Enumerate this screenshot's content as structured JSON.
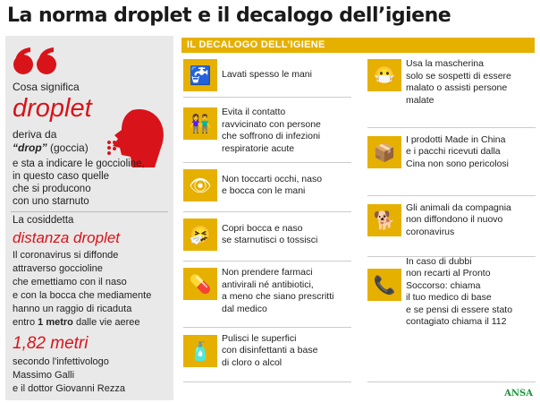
{
  "title": "La norma droplet e il decalogo dell’igiene",
  "left": {
    "intro": "Cosa significa",
    "term": "droplet",
    "deriva": "deriva da",
    "drop": "“drop”",
    "goccia": " (goccia)",
    "desc": [
      "e sta a indicare le goccioline,",
      "in questo caso quelle",
      "che si producono",
      "con uno starnuto"
    ],
    "cosiddetta": "La cosiddetta",
    "distanza": "distanza droplet",
    "body": [
      "Il coronavirus si diffonde",
      "attraverso goccioline",
      "che emettiamo con il naso",
      "e con la bocca che mediamente",
      "hanno un raggio di ricaduta"
    ],
    "entro": "entro ",
    "metro": "1 metro",
    "vie": " dalle vie aeree",
    "metri": "1,82 metri",
    "source": [
      "secondo l'infettivologo",
      "Massimo Galli",
      "e il dottor Giovanni Rezza"
    ]
  },
  "header": "IL DECALOGO DELL’IGIENE",
  "items": [
    {
      "icon": "faucet-icon",
      "text": "Lavati spesso le mani"
    },
    {
      "icon": "people-icon",
      "text": "Evita il contatto\nravvicinato con persone\nche soffrono di infezioni\nrespiratorie acute"
    },
    {
      "icon": "eye-icon",
      "text": "Non toccarti occhi, naso\ne bocca con le mani"
    },
    {
      "icon": "sneeze-icon",
      "text": "Copri bocca e naso\nse starnutisci o tossisci"
    },
    {
      "icon": "pills-icon",
      "text": "Non prendere farmaci\nantivirali né antibiotici,\na meno che siano prescritti\ndal medico"
    },
    {
      "icon": "disinfectant-icon",
      "text": "Pulisci le superfici\ncon disinfettanti a base\ndi cloro o alcol"
    },
    {
      "icon": "mask-icon",
      "text": "Usa la mascherina\nsolo se sospetti di essere\nmalato o assisti persone\nmalate"
    },
    {
      "icon": "package-icon",
      "text": "I prodotti Made in China\ne i pacchi ricevuti dalla\nCina non sono pericolosi"
    },
    {
      "icon": "dog-icon",
      "text": "Gli animali da compagnia\nnon diffondono il nuovo\ncoronavirus"
    },
    {
      "icon": "phone-icon",
      "text": "In caso di dubbi\nnon recarti al Pronto\nSoccorso: chiama\nil tuo medico di base\ne se pensi di essere stato\ncontagiato chiama il 112"
    }
  ],
  "logo": "ANSA",
  "colors": {
    "accent": "#e6b000",
    "red": "#d8141a",
    "panel": "#e9e9e9"
  }
}
